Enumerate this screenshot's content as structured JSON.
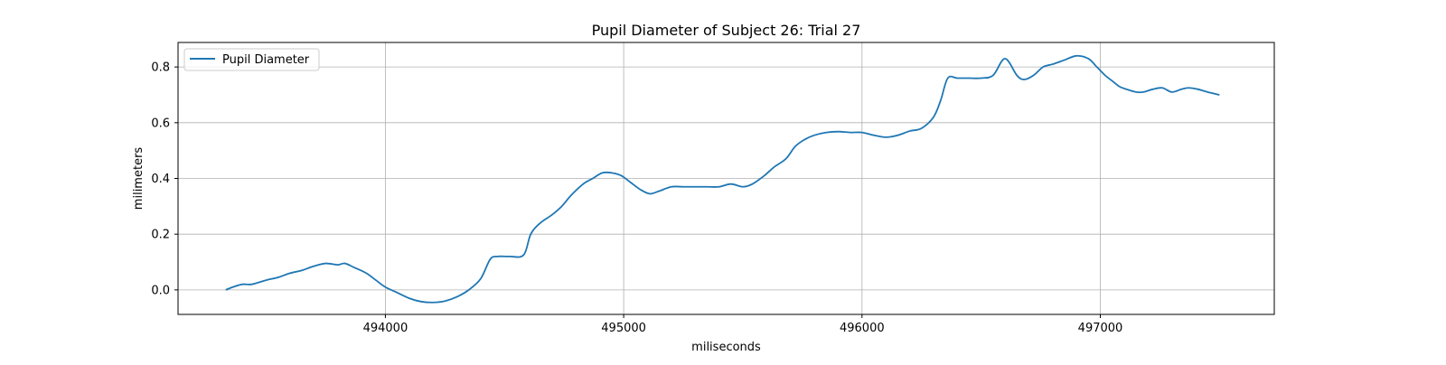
{
  "chart_data": {
    "type": "line",
    "title": "Pupil Diameter of Subject 26: Trial 27",
    "xlabel": "miliseconds",
    "ylabel": "milimeters",
    "xlim": [
      493130,
      497730
    ],
    "ylim": [
      -0.088,
      0.888
    ],
    "xticks": [
      494000,
      495000,
      496000,
      497000
    ],
    "yticks": [
      0.0,
      0.2,
      0.4,
      0.6,
      0.8
    ],
    "xtick_labels": [
      "494000",
      "495000",
      "496000",
      "497000"
    ],
    "ytick_labels": [
      "0.0",
      "0.2",
      "0.4",
      "0.6",
      "0.8"
    ],
    "grid": true,
    "legend_position": "upper-left",
    "series": [
      {
        "name": "Pupil Diameter",
        "color": "#1f77b4",
        "x": [
          493330,
          493360,
          493400,
          493440,
          493500,
          493550,
          493600,
          493650,
          493700,
          493750,
          493800,
          493830,
          493870,
          493920,
          493960,
          494000,
          494050,
          494100,
          494150,
          494200,
          494250,
          494300,
          494350,
          494400,
          494440,
          494470,
          494520,
          494580,
          494610,
          494650,
          494700,
          494740,
          494780,
          494830,
          494870,
          494910,
          494950,
          494990,
          495030,
          495070,
          495110,
          495150,
          495200,
          495250,
          495300,
          495350,
          495400,
          495450,
          495500,
          495540,
          495590,
          495630,
          495680,
          495720,
          495760,
          495800,
          495850,
          495900,
          495950,
          496000,
          496050,
          496100,
          496150,
          496200,
          496250,
          496300,
          496330,
          496360,
          496400,
          496450,
          496500,
          496550,
          496600,
          496650,
          496680,
          496720,
          496760,
          496800,
          496850,
          496900,
          496950,
          496980,
          497020,
          497050,
          497080,
          497110,
          497150,
          497180,
          497220,
          497260,
          497300,
          497340,
          497370,
          497410,
          497450,
          497500
        ],
        "values": [
          0.0,
          0.01,
          0.02,
          0.02,
          0.035,
          0.045,
          0.06,
          0.07,
          0.085,
          0.095,
          0.09,
          0.095,
          0.08,
          0.06,
          0.035,
          0.01,
          -0.01,
          -0.03,
          -0.042,
          -0.045,
          -0.04,
          -0.025,
          0.0,
          0.04,
          0.11,
          0.12,
          0.12,
          0.125,
          0.2,
          0.24,
          0.27,
          0.3,
          0.34,
          0.38,
          0.4,
          0.42,
          0.42,
          0.41,
          0.385,
          0.36,
          0.345,
          0.355,
          0.37,
          0.37,
          0.37,
          0.37,
          0.37,
          0.38,
          0.37,
          0.38,
          0.41,
          0.44,
          0.47,
          0.515,
          0.54,
          0.555,
          0.565,
          0.568,
          0.565,
          0.565,
          0.555,
          0.548,
          0.555,
          0.57,
          0.58,
          0.62,
          0.68,
          0.76,
          0.76,
          0.76,
          0.76,
          0.77,
          0.83,
          0.77,
          0.755,
          0.77,
          0.8,
          0.81,
          0.825,
          0.84,
          0.83,
          0.805,
          0.77,
          0.75,
          0.73,
          0.72,
          0.71,
          0.71,
          0.72,
          0.725,
          0.71,
          0.72,
          0.725,
          0.72,
          0.71,
          0.7
        ]
      }
    ]
  }
}
